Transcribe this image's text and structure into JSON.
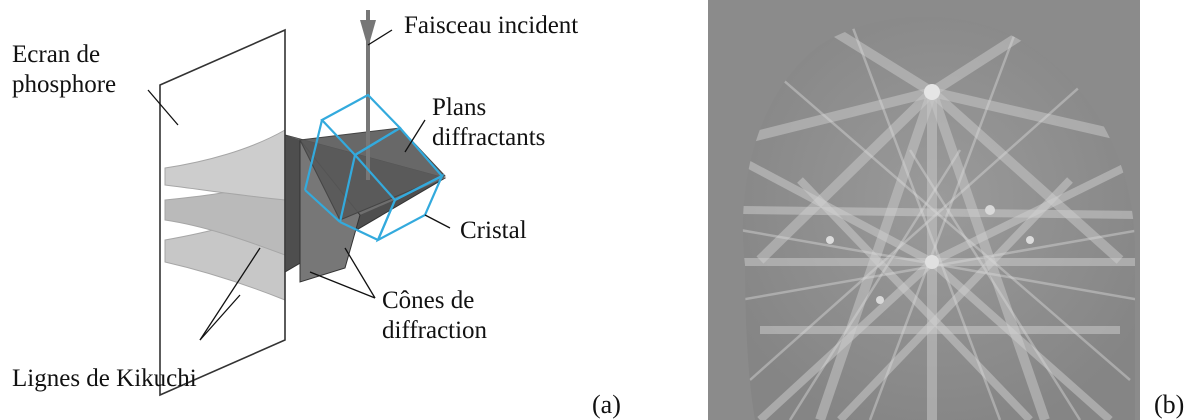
{
  "panel_a": {
    "labels": {
      "faisceau": "Faisceau incident",
      "ecran_line1": "Ecran de",
      "ecran_line2": "phosphore",
      "plans_line1": "Plans",
      "plans_line2": "diffractants",
      "cristal": "Cristal",
      "cones_line1": "Cônes de",
      "cones_line2": "diffraction",
      "kikuchi": "Lignes de Kikuchi"
    },
    "sublabel": "(a)",
    "colors": {
      "crystal_outline": "#33aadd",
      "cone_dark": "#555555",
      "cone_light": "#a9a9a9",
      "beam": "#777777"
    }
  },
  "panel_b": {
    "sublabel": "(b)",
    "pattern_colors": {
      "background": "#8b8b8b",
      "disc": "#8e8e8e",
      "band": "#c9c9c9"
    }
  }
}
